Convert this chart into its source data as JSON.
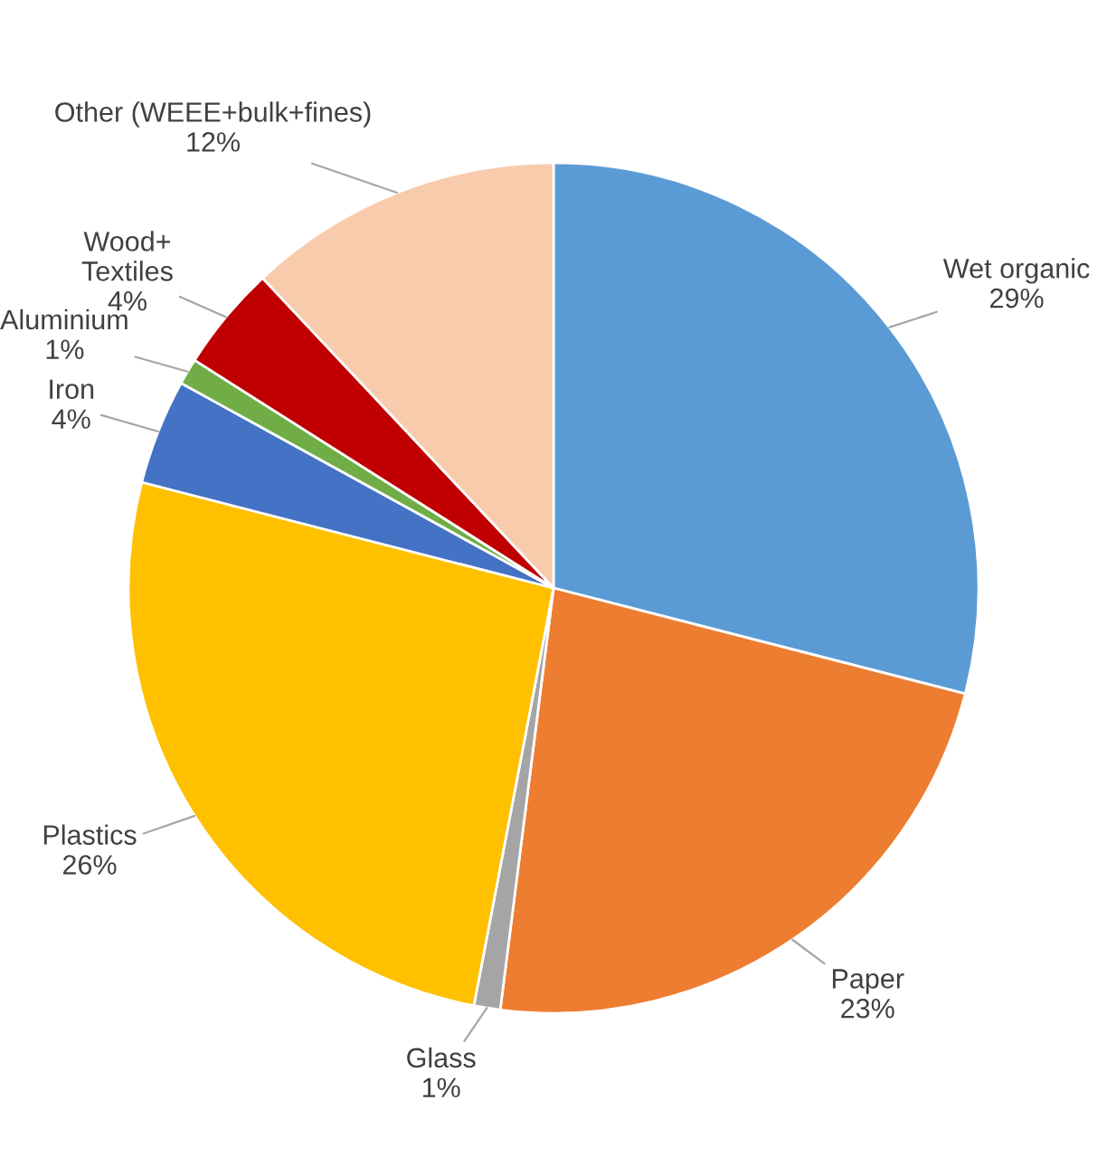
{
  "chart_data": {
    "type": "pie",
    "categories": [
      "Wet organic",
      "Paper",
      "Glass",
      "Plastics",
      "Iron",
      "Aluminium",
      "Wood+\nTextiles",
      "Other (WEEE+bulk+fines)"
    ],
    "values": [
      29,
      23,
      1,
      26,
      4,
      1,
      4,
      12
    ],
    "value_labels": [
      "29%",
      "23%",
      "1%",
      "26%",
      "4%",
      "1%",
      "4%",
      "12%"
    ],
    "colors": [
      "#5b9bd5",
      "#ed7d31",
      "#a5a5a5",
      "#ffc000",
      "#4472c4",
      "#70ad47",
      "#c00000",
      "#f8cbad"
    ],
    "legend": false
  }
}
